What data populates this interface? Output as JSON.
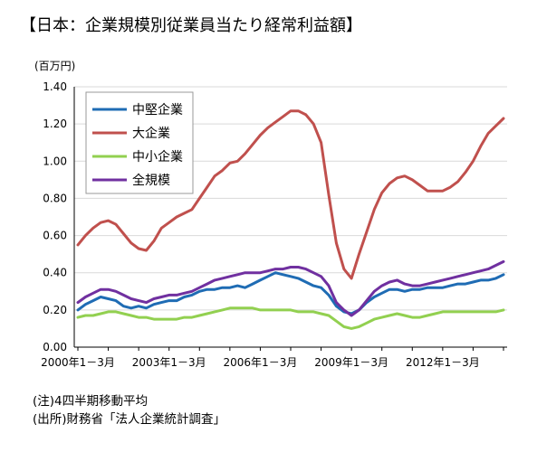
{
  "title": "【日本：企業規模別従業員当たり経常利益額】",
  "notes": [
    "(注)4四半期移動平均",
    "(出所)財務省「法人企業統計調査」"
  ],
  "chart_data": {
    "type": "line",
    "title": "【日本：企業規模別従業員当たり経常利益額】",
    "ylabel": "(百万円)",
    "ylim": [
      0,
      1.4
    ],
    "yticks": [
      "0.00",
      "0.20",
      "0.40",
      "0.60",
      "0.80",
      "1.00",
      "1.20",
      "1.40"
    ],
    "x": [
      "2000Q1",
      "2000Q2",
      "2000Q3",
      "2000Q4",
      "2001Q1",
      "2001Q2",
      "2001Q3",
      "2001Q4",
      "2002Q1",
      "2002Q2",
      "2002Q3",
      "2002Q4",
      "2003Q1",
      "2003Q2",
      "2003Q3",
      "2003Q4",
      "2004Q1",
      "2004Q2",
      "2004Q3",
      "2004Q4",
      "2005Q1",
      "2005Q2",
      "2005Q3",
      "2005Q4",
      "2006Q1",
      "2006Q2",
      "2006Q3",
      "2006Q4",
      "2007Q1",
      "2007Q2",
      "2007Q3",
      "2007Q4",
      "2008Q1",
      "2008Q2",
      "2008Q3",
      "2008Q4",
      "2009Q1",
      "2009Q2",
      "2009Q3",
      "2009Q4",
      "2010Q1",
      "2010Q2",
      "2010Q3",
      "2010Q4",
      "2011Q1",
      "2011Q2",
      "2011Q3",
      "2011Q4",
      "2012Q1",
      "2012Q2",
      "2012Q3",
      "2012Q4",
      "2013Q1",
      "2013Q2",
      "2013Q3",
      "2013Q4",
      "2014Q1"
    ],
    "xticks": [
      {
        "index": 0,
        "label": "2000年1－3月"
      },
      {
        "index": 12,
        "label": "2003年1－3月"
      },
      {
        "index": 24,
        "label": "2006年1－3月"
      },
      {
        "index": 36,
        "label": "2009年1－3月"
      },
      {
        "index": 48,
        "label": "2012年1－3月"
      }
    ],
    "grid": true,
    "legend_position": "top-left",
    "series": [
      {
        "name": "中堅企業",
        "color": "#1F6CB4",
        "values": [
          0.2,
          0.23,
          0.25,
          0.27,
          0.26,
          0.25,
          0.22,
          0.21,
          0.22,
          0.21,
          0.23,
          0.24,
          0.25,
          0.25,
          0.27,
          0.28,
          0.3,
          0.31,
          0.31,
          0.32,
          0.32,
          0.33,
          0.32,
          0.34,
          0.36,
          0.38,
          0.4,
          0.39,
          0.38,
          0.37,
          0.35,
          0.33,
          0.32,
          0.28,
          0.22,
          0.19,
          0.18,
          0.2,
          0.24,
          0.27,
          0.29,
          0.31,
          0.31,
          0.3,
          0.31,
          0.31,
          0.32,
          0.32,
          0.32,
          0.33,
          0.34,
          0.34,
          0.35,
          0.36,
          0.36,
          0.37,
          0.39
        ]
      },
      {
        "name": "大企業",
        "color": "#C0504D",
        "values": [
          0.55,
          0.6,
          0.64,
          0.67,
          0.68,
          0.66,
          0.61,
          0.56,
          0.53,
          0.52,
          0.57,
          0.64,
          0.67,
          0.7,
          0.72,
          0.74,
          0.8,
          0.86,
          0.92,
          0.95,
          0.99,
          1.0,
          1.04,
          1.09,
          1.14,
          1.18,
          1.21,
          1.24,
          1.27,
          1.27,
          1.25,
          1.2,
          1.1,
          0.82,
          0.56,
          0.42,
          0.37,
          0.5,
          0.62,
          0.74,
          0.83,
          0.88,
          0.91,
          0.92,
          0.9,
          0.87,
          0.84,
          0.84,
          0.84,
          0.86,
          0.89,
          0.94,
          1.0,
          1.08,
          1.15,
          1.19,
          1.23
        ]
      },
      {
        "name": "中小企業",
        "color": "#92D050",
        "values": [
          0.16,
          0.17,
          0.17,
          0.18,
          0.19,
          0.19,
          0.18,
          0.17,
          0.16,
          0.16,
          0.15,
          0.15,
          0.15,
          0.15,
          0.16,
          0.16,
          0.17,
          0.18,
          0.19,
          0.2,
          0.21,
          0.21,
          0.21,
          0.21,
          0.2,
          0.2,
          0.2,
          0.2,
          0.2,
          0.19,
          0.19,
          0.19,
          0.18,
          0.17,
          0.14,
          0.11,
          0.1,
          0.11,
          0.13,
          0.15,
          0.16,
          0.17,
          0.18,
          0.17,
          0.16,
          0.16,
          0.17,
          0.18,
          0.19,
          0.19,
          0.19,
          0.19,
          0.19,
          0.19,
          0.19,
          0.19,
          0.2
        ]
      },
      {
        "name": "全規模",
        "color": "#7030A0",
        "values": [
          0.24,
          0.27,
          0.29,
          0.31,
          0.31,
          0.3,
          0.28,
          0.26,
          0.25,
          0.24,
          0.26,
          0.27,
          0.28,
          0.28,
          0.29,
          0.3,
          0.32,
          0.34,
          0.36,
          0.37,
          0.38,
          0.39,
          0.4,
          0.4,
          0.4,
          0.41,
          0.42,
          0.42,
          0.43,
          0.43,
          0.42,
          0.4,
          0.38,
          0.33,
          0.24,
          0.2,
          0.17,
          0.2,
          0.25,
          0.3,
          0.33,
          0.35,
          0.36,
          0.34,
          0.33,
          0.33,
          0.34,
          0.35,
          0.36,
          0.37,
          0.38,
          0.39,
          0.4,
          0.41,
          0.42,
          0.44,
          0.46
        ]
      }
    ]
  }
}
